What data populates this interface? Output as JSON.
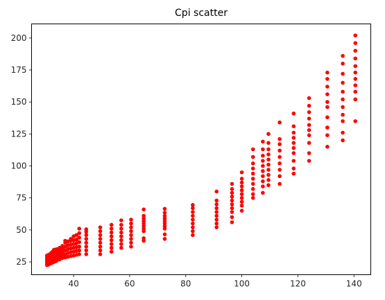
{
  "chart_data": {
    "type": "scatter",
    "title": "Cpi scatter",
    "xlabel": "",
    "ylabel": "",
    "xlim": [
      25,
      146
    ],
    "ylim": [
      15,
      211
    ],
    "xticks": [
      40,
      60,
      80,
      100,
      120,
      140
    ],
    "yticks": [
      25,
      50,
      75,
      100,
      125,
      150,
      175,
      200
    ],
    "grid": false,
    "legend": "none",
    "marker_color": "#ff0000",
    "series": [
      {
        "points": [
          [
            30.5,
            22.5
          ],
          [
            30.5,
            24
          ],
          [
            30.5,
            25.5
          ],
          [
            30.5,
            27
          ],
          [
            30.5,
            28.5
          ],
          [
            30.5,
            30
          ],
          [
            31.0,
            23
          ],
          [
            31.0,
            24.5
          ],
          [
            31.0,
            26
          ],
          [
            31.0,
            27.5
          ],
          [
            31.0,
            29
          ],
          [
            31.0,
            30.5
          ],
          [
            31.5,
            23.5
          ],
          [
            31.5,
            25
          ],
          [
            31.5,
            26.5
          ],
          [
            31.5,
            28
          ],
          [
            31.5,
            29.5
          ],
          [
            31.5,
            31
          ],
          [
            32.0,
            24
          ],
          [
            32.0,
            25.5
          ],
          [
            32.0,
            27
          ],
          [
            32.0,
            28.5
          ],
          [
            32.0,
            30
          ],
          [
            32.0,
            32
          ],
          [
            32.5,
            24.5
          ],
          [
            32.5,
            26
          ],
          [
            32.5,
            27.5
          ],
          [
            32.5,
            29
          ],
          [
            32.5,
            31
          ],
          [
            32.5,
            33
          ],
          [
            33.0,
            25
          ],
          [
            33.0,
            27
          ],
          [
            33.0,
            29
          ],
          [
            33.0,
            31
          ],
          [
            33.0,
            33
          ],
          [
            33.0,
            34.5
          ],
          [
            33.5,
            25.5
          ],
          [
            33.5,
            28
          ],
          [
            33.5,
            30
          ],
          [
            33.5,
            32
          ],
          [
            33.5,
            34.5
          ],
          [
            34.0,
            26
          ],
          [
            34.0,
            28.5
          ],
          [
            34.0,
            30.5
          ],
          [
            34.0,
            33
          ],
          [
            34.0,
            35
          ],
          [
            35.0,
            27
          ],
          [
            35.0,
            29.5
          ],
          [
            35.0,
            32
          ],
          [
            35.0,
            34.5
          ],
          [
            35.0,
            36
          ],
          [
            36.0,
            28
          ],
          [
            36.0,
            30.5
          ],
          [
            36.0,
            33
          ],
          [
            36.0,
            35.5
          ],
          [
            36.0,
            37.5
          ],
          [
            37.0,
            28.5
          ],
          [
            37.0,
            31
          ],
          [
            37.0,
            34
          ],
          [
            37.0,
            37
          ],
          [
            37.0,
            40
          ],
          [
            37.0,
            41.5
          ],
          [
            38.0,
            29
          ],
          [
            38.0,
            32
          ],
          [
            38.0,
            35
          ],
          [
            38.0,
            38
          ],
          [
            38.0,
            41
          ],
          [
            39.0,
            29.5
          ],
          [
            39.0,
            32.5
          ],
          [
            39.0,
            35.5
          ],
          [
            39.0,
            38.5
          ],
          [
            39.0,
            41.5
          ],
          [
            39.0,
            43
          ],
          [
            40.0,
            30
          ],
          [
            40.0,
            33
          ],
          [
            40.0,
            36
          ],
          [
            40.0,
            39
          ],
          [
            40.0,
            42
          ],
          [
            40.0,
            45
          ],
          [
            41.0,
            30.5
          ],
          [
            41.0,
            33.5
          ],
          [
            41.0,
            36.5
          ],
          [
            41.0,
            39.5
          ],
          [
            41.0,
            42.5
          ],
          [
            41.0,
            46
          ],
          [
            42.0,
            31
          ],
          [
            42.0,
            34
          ],
          [
            42.0,
            37
          ],
          [
            42.0,
            40.5
          ],
          [
            42.0,
            44
          ],
          [
            42.0,
            47.5
          ],
          [
            42.0,
            51
          ],
          [
            44.5,
            31
          ],
          [
            44.5,
            34
          ],
          [
            44.5,
            37
          ],
          [
            44.5,
            40
          ],
          [
            44.5,
            43
          ],
          [
            44.5,
            46
          ],
          [
            44.5,
            48.5
          ],
          [
            44.5,
            50.5
          ],
          [
            49.5,
            31
          ],
          [
            49.5,
            34
          ],
          [
            49.5,
            37
          ],
          [
            49.5,
            40
          ],
          [
            49.5,
            43
          ],
          [
            49.5,
            46
          ],
          [
            49.5,
            49
          ],
          [
            49.5,
            52
          ],
          [
            53.5,
            33
          ],
          [
            53.5,
            36
          ],
          [
            53.5,
            39
          ],
          [
            53.5,
            42
          ],
          [
            53.5,
            45
          ],
          [
            53.5,
            48
          ],
          [
            53.5,
            51
          ],
          [
            53.5,
            54
          ],
          [
            57.0,
            36
          ],
          [
            57.0,
            39
          ],
          [
            57.0,
            42
          ],
          [
            57.0,
            45
          ],
          [
            57.0,
            48
          ],
          [
            57.0,
            51
          ],
          [
            57.0,
            54
          ],
          [
            57.0,
            57.5
          ],
          [
            60.5,
            37
          ],
          [
            60.5,
            40
          ],
          [
            60.5,
            43
          ],
          [
            60.5,
            46
          ],
          [
            60.5,
            49
          ],
          [
            60.5,
            52
          ],
          [
            60.5,
            55
          ],
          [
            60.5,
            58
          ],
          [
            65.0,
            41.5
          ],
          [
            65.0,
            43.5
          ],
          [
            65.0,
            49
          ],
          [
            65.0,
            51
          ],
          [
            65.0,
            53
          ],
          [
            65.0,
            55
          ],
          [
            65.0,
            57
          ],
          [
            65.0,
            59
          ],
          [
            65.0,
            61
          ],
          [
            65.0,
            66
          ],
          [
            72.5,
            43
          ],
          [
            72.5,
            46.5
          ],
          [
            72.5,
            51
          ],
          [
            72.5,
            53
          ],
          [
            72.5,
            55
          ],
          [
            72.5,
            57
          ],
          [
            72.5,
            59
          ],
          [
            72.5,
            61
          ],
          [
            72.5,
            63.5
          ],
          [
            72.5,
            66.5
          ],
          [
            82.5,
            46
          ],
          [
            82.5,
            49
          ],
          [
            82.5,
            52
          ],
          [
            82.5,
            55
          ],
          [
            82.5,
            58
          ],
          [
            82.5,
            61
          ],
          [
            82.5,
            64
          ],
          [
            82.5,
            67
          ],
          [
            82.5,
            69.5
          ],
          [
            91.0,
            52
          ],
          [
            91.0,
            55
          ],
          [
            91.0,
            58
          ],
          [
            91.0,
            61
          ],
          [
            91.0,
            64
          ],
          [
            91.0,
            67
          ],
          [
            91.0,
            70
          ],
          [
            91.0,
            73
          ],
          [
            91.0,
            80
          ],
          [
            96.5,
            56
          ],
          [
            96.5,
            60
          ],
          [
            96.5,
            64
          ],
          [
            96.5,
            67
          ],
          [
            96.5,
            70
          ],
          [
            96.5,
            73
          ],
          [
            96.5,
            76
          ],
          [
            96.5,
            79
          ],
          [
            96.5,
            82
          ],
          [
            96.5,
            86
          ],
          [
            100.0,
            65
          ],
          [
            100.0,
            69
          ],
          [
            100.0,
            72
          ],
          [
            100.0,
            75
          ],
          [
            100.0,
            78
          ],
          [
            100.0,
            81
          ],
          [
            100.0,
            84
          ],
          [
            100.0,
            87
          ],
          [
            100.0,
            90
          ],
          [
            100.0,
            95
          ],
          [
            104.0,
            75
          ],
          [
            104.0,
            78
          ],
          [
            104.0,
            82
          ],
          [
            104.0,
            86
          ],
          [
            104.0,
            90
          ],
          [
            104.0,
            94
          ],
          [
            104.0,
            98
          ],
          [
            104.0,
            102
          ],
          [
            104.0,
            107
          ],
          [
            104.0,
            113
          ],
          [
            107.5,
            79
          ],
          [
            107.5,
            84
          ],
          [
            107.5,
            88
          ],
          [
            107.5,
            92
          ],
          [
            107.5,
            96
          ],
          [
            107.5,
            100
          ],
          [
            107.5,
            104
          ],
          [
            107.5,
            108
          ],
          [
            107.5,
            113
          ],
          [
            107.5,
            119
          ],
          [
            109.5,
            85
          ],
          [
            109.5,
            89
          ],
          [
            109.5,
            93
          ],
          [
            109.5,
            97
          ],
          [
            109.5,
            101
          ],
          [
            109.5,
            105
          ],
          [
            109.5,
            109
          ],
          [
            109.5,
            113
          ],
          [
            109.5,
            118
          ],
          [
            109.5,
            125
          ],
          [
            113.5,
            86
          ],
          [
            113.5,
            92
          ],
          [
            113.5,
            97
          ],
          [
            113.5,
            102
          ],
          [
            113.5,
            107
          ],
          [
            113.5,
            112
          ],
          [
            113.5,
            117
          ],
          [
            113.5,
            121
          ],
          [
            113.5,
            134
          ],
          [
            118.5,
            94
          ],
          [
            118.5,
            98
          ],
          [
            118.5,
            104
          ],
          [
            118.5,
            110
          ],
          [
            118.5,
            114
          ],
          [
            118.5,
            118
          ],
          [
            118.5,
            122
          ],
          [
            118.5,
            126
          ],
          [
            118.5,
            131
          ],
          [
            118.5,
            141
          ],
          [
            124.0,
            104
          ],
          [
            124.0,
            110
          ],
          [
            124.0,
            118
          ],
          [
            124.0,
            124
          ],
          [
            124.0,
            128
          ],
          [
            124.0,
            132
          ],
          [
            124.0,
            137
          ],
          [
            124.0,
            142
          ],
          [
            124.0,
            147
          ],
          [
            124.0,
            153
          ],
          [
            130.5,
            115
          ],
          [
            130.5,
            124
          ],
          [
            130.5,
            130
          ],
          [
            130.5,
            138
          ],
          [
            130.5,
            146
          ],
          [
            130.5,
            150
          ],
          [
            130.5,
            156
          ],
          [
            130.5,
            162
          ],
          [
            130.5,
            168
          ],
          [
            130.5,
            173
          ],
          [
            136.0,
            120
          ],
          [
            136.0,
            126
          ],
          [
            136.0,
            135
          ],
          [
            136.0,
            140
          ],
          [
            136.0,
            146
          ],
          [
            136.0,
            152
          ],
          [
            136.0,
            158
          ],
          [
            136.0,
            165
          ],
          [
            136.0,
            172
          ],
          [
            136.0,
            180
          ],
          [
            136.0,
            186
          ],
          [
            140.5,
            135
          ],
          [
            140.5,
            152
          ],
          [
            140.5,
            158
          ],
          [
            140.5,
            163
          ],
          [
            140.5,
            168
          ],
          [
            140.5,
            173
          ],
          [
            140.5,
            178
          ],
          [
            140.5,
            184
          ],
          [
            140.5,
            190
          ],
          [
            140.5,
            196
          ],
          [
            140.5,
            202
          ]
        ]
      }
    ]
  }
}
